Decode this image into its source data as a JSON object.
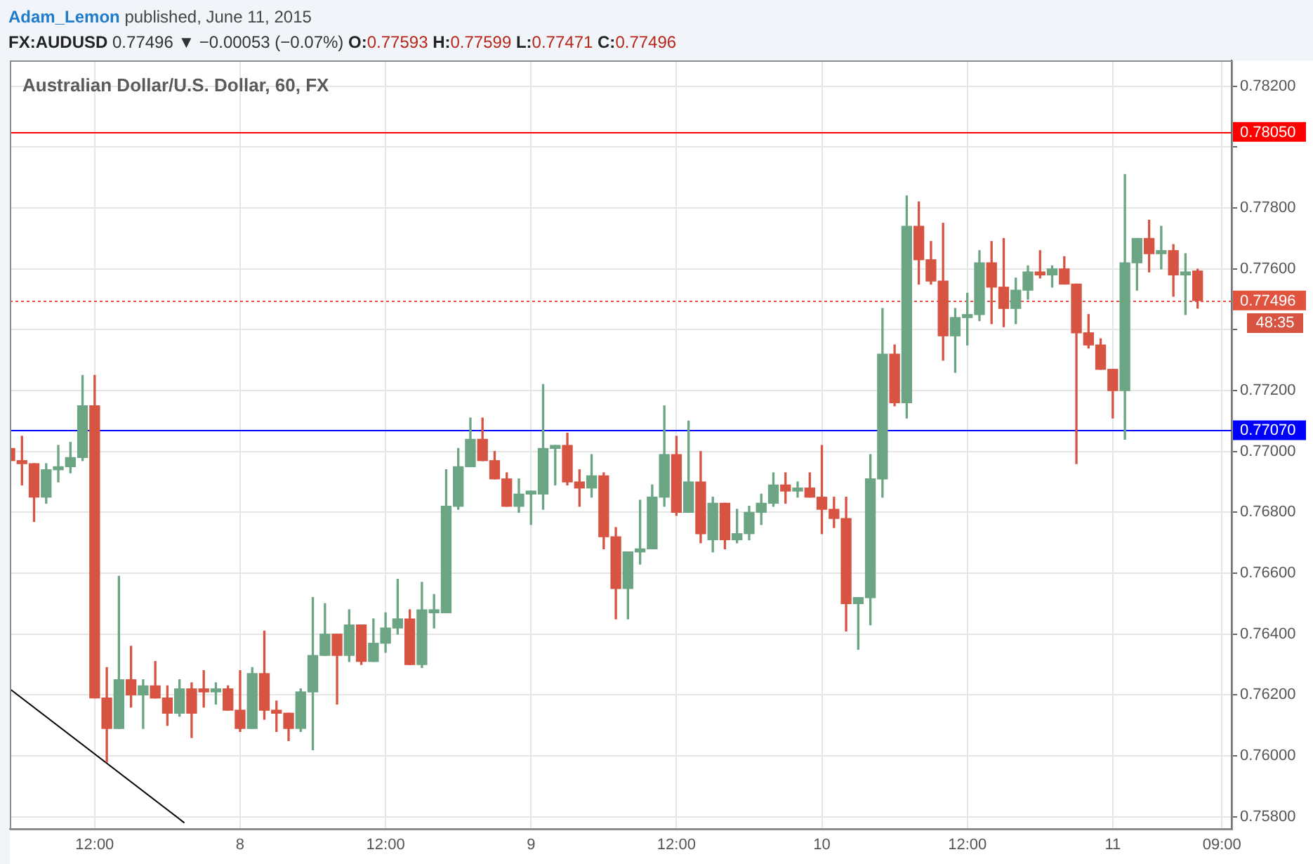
{
  "chart_data": {
    "type": "candlestick",
    "title": "Australian Dollar/U.S. Dollar, 60, FX",
    "annotations": [
      "Adam_Lemon published, June 11, 2015",
      "FX:AUDUSD 0.77496 ▼ −0.00053 (−0.07%) O:0.77593 H:0.77599 L:0.77471 C:0.77496",
      "48:35"
    ],
    "x": [
      "2015-06-07T05:00",
      "2015-06-07T06:00",
      "2015-06-07T07:00",
      "2015-06-07T08:00",
      "2015-06-07T09:00",
      "2015-06-07T10:00",
      "2015-06-07T11:00",
      "2015-06-07T12:00",
      "2015-06-07T13:00",
      "2015-06-07T14:00",
      "2015-06-07T15:00",
      "2015-06-07T16:00",
      "2015-06-07T17:00",
      "2015-06-07T18:00",
      "2015-06-07T19:00",
      "2015-06-07T20:00",
      "2015-06-07T21:00",
      "2015-06-07T22:00",
      "2015-06-07T23:00",
      "2015-06-08T00:00",
      "2015-06-08T01:00",
      "2015-06-08T02:00",
      "2015-06-08T03:00",
      "2015-06-08T04:00",
      "2015-06-08T05:00",
      "2015-06-08T06:00",
      "2015-06-08T07:00",
      "2015-06-08T08:00",
      "2015-06-08T09:00",
      "2015-06-08T10:00",
      "2015-06-08T11:00",
      "2015-06-08T12:00",
      "2015-06-08T13:00",
      "2015-06-08T14:00",
      "2015-06-08T15:00",
      "2015-06-08T16:00",
      "2015-06-08T17:00",
      "2015-06-08T18:00",
      "2015-06-08T19:00",
      "2015-06-08T20:00",
      "2015-06-08T21:00",
      "2015-06-08T22:00",
      "2015-06-08T23:00",
      "2015-06-09T00:00",
      "2015-06-09T01:00",
      "2015-06-09T02:00",
      "2015-06-09T03:00",
      "2015-06-09T04:00",
      "2015-06-09T05:00",
      "2015-06-09T06:00",
      "2015-06-09T07:00",
      "2015-06-09T08:00",
      "2015-06-09T09:00",
      "2015-06-09T10:00",
      "2015-06-09T11:00",
      "2015-06-09T12:00",
      "2015-06-09T13:00",
      "2015-06-09T14:00",
      "2015-06-09T15:00",
      "2015-06-09T16:00",
      "2015-06-09T17:00",
      "2015-06-09T18:00",
      "2015-06-09T19:00",
      "2015-06-09T20:00",
      "2015-06-09T21:00",
      "2015-06-09T22:00",
      "2015-06-09T23:00",
      "2015-06-10T00:00",
      "2015-06-10T01:00",
      "2015-06-10T02:00",
      "2015-06-10T03:00",
      "2015-06-10T04:00",
      "2015-06-10T05:00",
      "2015-06-10T06:00",
      "2015-06-10T07:00",
      "2015-06-10T08:00",
      "2015-06-10T09:00",
      "2015-06-10T10:00",
      "2015-06-10T11:00",
      "2015-06-10T12:00",
      "2015-06-10T13:00",
      "2015-06-10T14:00",
      "2015-06-10T15:00",
      "2015-06-10T16:00",
      "2015-06-10T17:00",
      "2015-06-10T18:00",
      "2015-06-10T19:00",
      "2015-06-10T20:00",
      "2015-06-10T21:00",
      "2015-06-10T22:00",
      "2015-06-10T23:00",
      "2015-06-11T00:00",
      "2015-06-11T01:00",
      "2015-06-11T02:00",
      "2015-06-11T03:00",
      "2015-06-11T04:00",
      "2015-06-11T05:00",
      "2015-06-11T06:00",
      "2015-06-11T07:00"
    ],
    "ohlc": [
      [
        0.7701,
        0.7701,
        0.7697,
        0.7697
      ],
      [
        0.7697,
        0.7705,
        0.7689,
        0.7696
      ],
      [
        0.7696,
        0.7696,
        0.7677,
        0.7685
      ],
      [
        0.7685,
        0.7696,
        0.7683,
        0.7694
      ],
      [
        0.7694,
        0.7702,
        0.769,
        0.7695
      ],
      [
        0.7695,
        0.7703,
        0.7693,
        0.7698
      ],
      [
        0.7698,
        0.7725,
        0.7697,
        0.7715
      ],
      [
        0.7715,
        0.7725,
        0.7619,
        0.7619
      ],
      [
        0.7619,
        0.7629,
        0.7598,
        0.7609
      ],
      [
        0.7609,
        0.7659,
        0.7609,
        0.7625
      ],
      [
        0.7625,
        0.7636,
        0.7616,
        0.762
      ],
      [
        0.762,
        0.7625,
        0.7609,
        0.7623
      ],
      [
        0.7623,
        0.7631,
        0.7619,
        0.7619
      ],
      [
        0.7619,
        0.7623,
        0.761,
        0.7614
      ],
      [
        0.7614,
        0.7625,
        0.7613,
        0.7622
      ],
      [
        0.7622,
        0.7624,
        0.7606,
        0.7614
      ],
      [
        0.7622,
        0.7628,
        0.7616,
        0.7621
      ],
      [
        0.7621,
        0.7624,
        0.7617,
        0.7622
      ],
      [
        0.7622,
        0.7623,
        0.7615,
        0.7615
      ],
      [
        0.7615,
        0.7628,
        0.7608,
        0.7609
      ],
      [
        0.7609,
        0.7629,
        0.7609,
        0.7627
      ],
      [
        0.7627,
        0.7641,
        0.7612,
        0.7615
      ],
      [
        0.7615,
        0.7618,
        0.7608,
        0.7614
      ],
      [
        0.7614,
        0.7614,
        0.7605,
        0.7609
      ],
      [
        0.7609,
        0.7622,
        0.7608,
        0.7621
      ],
      [
        0.7621,
        0.7652,
        0.7602,
        0.7633
      ],
      [
        0.7633,
        0.765,
        0.7633,
        0.764
      ],
      [
        0.764,
        0.764,
        0.7617,
        0.7633
      ],
      [
        0.7633,
        0.7648,
        0.7631,
        0.7643
      ],
      [
        0.7643,
        0.7643,
        0.763,
        0.7631
      ],
      [
        0.7631,
        0.7645,
        0.7631,
        0.7637
      ],
      [
        0.7637,
        0.7647,
        0.7634,
        0.7642
      ],
      [
        0.7642,
        0.7658,
        0.764,
        0.7645
      ],
      [
        0.7645,
        0.7648,
        0.763,
        0.763
      ],
      [
        0.763,
        0.7657,
        0.7629,
        0.7648
      ],
      [
        0.7647,
        0.7653,
        0.7642,
        0.7648
      ],
      [
        0.7647,
        0.7694,
        0.7647,
        0.7682
      ],
      [
        0.7682,
        0.7701,
        0.7681,
        0.7695
      ],
      [
        0.7695,
        0.7711,
        0.7695,
        0.7704
      ],
      [
        0.7704,
        0.7711,
        0.7697,
        0.7697
      ],
      [
        0.7697,
        0.77,
        0.7691,
        0.7691
      ],
      [
        0.7691,
        0.7693,
        0.7682,
        0.7682
      ],
      [
        0.7682,
        0.7691,
        0.768,
        0.7686
      ],
      [
        0.7686,
        0.7687,
        0.7676,
        0.7687
      ],
      [
        0.7686,
        0.7722,
        0.7681,
        0.7701
      ],
      [
        0.7701,
        0.7702,
        0.7689,
        0.7702
      ],
      [
        0.7702,
        0.7706,
        0.7689,
        0.769
      ],
      [
        0.769,
        0.7694,
        0.7682,
        0.7688
      ],
      [
        0.7688,
        0.7699,
        0.7685,
        0.7692
      ],
      [
        0.7692,
        0.7693,
        0.7668,
        0.7672
      ],
      [
        0.7672,
        0.7675,
        0.7645,
        0.7655
      ],
      [
        0.7655,
        0.7667,
        0.7645,
        0.7667
      ],
      [
        0.7667,
        0.7684,
        0.7663,
        0.7668
      ],
      [
        0.7668,
        0.7689,
        0.7668,
        0.7685
      ],
      [
        0.7685,
        0.7715,
        0.7682,
        0.7699
      ],
      [
        0.7699,
        0.7705,
        0.7679,
        0.768
      ],
      [
        0.768,
        0.771,
        0.768,
        0.769
      ],
      [
        0.769,
        0.77,
        0.767,
        0.7673
      ],
      [
        0.7671,
        0.7685,
        0.7667,
        0.7683
      ],
      [
        0.7683,
        0.7683,
        0.7668,
        0.7671
      ],
      [
        0.7671,
        0.7681,
        0.767,
        0.7673
      ],
      [
        0.7673,
        0.7682,
        0.7671,
        0.768
      ],
      [
        0.768,
        0.7686,
        0.7676,
        0.7683
      ],
      [
        0.7683,
        0.7693,
        0.7682,
        0.7689
      ],
      [
        0.7689,
        0.7693,
        0.7683,
        0.7687
      ],
      [
        0.7687,
        0.769,
        0.7685,
        0.7688
      ],
      [
        0.7688,
        0.7693,
        0.7685,
        0.7685
      ],
      [
        0.7685,
        0.7702,
        0.7673,
        0.7681
      ],
      [
        0.7681,
        0.7685,
        0.7675,
        0.7678
      ],
      [
        0.7678,
        0.7685,
        0.7641,
        0.765
      ],
      [
        0.765,
        0.7652,
        0.7635,
        0.7652
      ],
      [
        0.7652,
        0.7699,
        0.7643,
        0.7691
      ],
      [
        0.7691,
        0.7747,
        0.7685,
        0.7732
      ],
      [
        0.7732,
        0.7735,
        0.7715,
        0.7716
      ],
      [
        0.7716,
        0.7784,
        0.7711,
        0.7774
      ],
      [
        0.7774,
        0.7782,
        0.7755,
        0.7763
      ],
      [
        0.7763,
        0.7769,
        0.7755,
        0.7756
      ],
      [
        0.7756,
        0.7775,
        0.773,
        0.7738
      ],
      [
        0.7738,
        0.7747,
        0.7726,
        0.7744
      ],
      [
        0.7744,
        0.7752,
        0.7735,
        0.7745
      ],
      [
        0.7745,
        0.7766,
        0.7743,
        0.7762
      ],
      [
        0.7762,
        0.7769,
        0.7742,
        0.7754
      ],
      [
        0.7754,
        0.777,
        0.7741,
        0.7747
      ],
      [
        0.7747,
        0.7757,
        0.7742,
        0.7753
      ],
      [
        0.7753,
        0.7761,
        0.775,
        0.7759
      ],
      [
        0.7759,
        0.7766,
        0.7757,
        0.7758
      ],
      [
        0.7758,
        0.7761,
        0.7754,
        0.776
      ],
      [
        0.776,
        0.7764,
        0.7755,
        0.7755
      ],
      [
        0.7755,
        0.7755,
        0.7696,
        0.7739
      ],
      [
        0.7739,
        0.7745,
        0.7734,
        0.7735
      ],
      [
        0.7735,
        0.7737,
        0.7727,
        0.7727
      ],
      [
        0.7727,
        0.7727,
        0.7711,
        0.772
      ],
      [
        0.772,
        0.7791,
        0.7704,
        0.7762
      ],
      [
        0.7762,
        0.777,
        0.7753,
        0.777
      ],
      [
        0.777,
        0.7776,
        0.7759,
        0.7765
      ],
      [
        0.7765,
        0.7774,
        0.776,
        0.7766
      ],
      [
        0.7766,
        0.7768,
        0.7751,
        0.7758
      ],
      [
        0.7758,
        0.7765,
        0.7745,
        0.7759
      ],
      [
        0.77593,
        0.77599,
        0.77471,
        0.77496
      ]
    ],
    "colors": [
      "#d75442",
      "#d75442",
      "#d75442",
      "#6ba583",
      "#6ba583",
      "#6ba583",
      "#6ba583",
      "#d75442",
      "#d75442",
      "#6ba583",
      "#d75442",
      "#6ba583",
      "#d75442",
      "#d75442",
      "#6ba583",
      "#d75442",
      "#d75442",
      "#6ba583",
      "#d75442",
      "#d75442",
      "#6ba583",
      "#d75442",
      "#d75442",
      "#d75442",
      "#6ba583",
      "#6ba583",
      "#6ba583",
      "#d75442",
      "#6ba583",
      "#d75442",
      "#6ba583",
      "#6ba583",
      "#6ba583",
      "#d75442",
      "#6ba583",
      "#6ba583",
      "#6ba583",
      "#6ba583",
      "#6ba583",
      "#d75442",
      "#d75442",
      "#d75442",
      "#6ba583",
      "#6ba583",
      "#6ba583",
      "#6ba583",
      "#d75442",
      "#d75442",
      "#6ba583",
      "#d75442",
      "#d75442",
      "#6ba583",
      "#6ba583",
      "#6ba583",
      "#6ba583",
      "#d75442",
      "#6ba583",
      "#d75442",
      "#6ba583",
      "#d75442",
      "#6ba583",
      "#6ba583",
      "#6ba583",
      "#6ba583",
      "#d75442",
      "#6ba583",
      "#d75442",
      "#d75442",
      "#d75442",
      "#d75442",
      "#6ba583",
      "#6ba583",
      "#6ba583",
      "#d75442",
      "#6ba583",
      "#d75442",
      "#d75442",
      "#d75442",
      "#6ba583",
      "#6ba583",
      "#6ba583",
      "#d75442",
      "#d75442",
      "#6ba583",
      "#6ba583",
      "#d75442",
      "#6ba583",
      "#d75442",
      "#d75442",
      "#d75442",
      "#d75442",
      "#d75442",
      "#6ba583",
      "#6ba583",
      "#d75442",
      "#6ba583",
      "#d75442",
      "#6ba583",
      "#d75442"
    ],
    "series": [
      {
        "type": "line",
        "x": [
          "2015-06-07T05:00",
          "2015-06-07T19:24"
        ],
        "values": [
          0.7622,
          0.7578
        ],
        "color": "#000000"
      }
    ],
    "ref_lines": [
      {
        "axis": "y",
        "value": 0.7805,
        "label": "0.78050",
        "color": "#ff0000"
      },
      {
        "axis": "y",
        "value": 0.7707,
        "label": "0.77070",
        "color": "#0000ff"
      },
      {
        "axis": "y",
        "value": 0.77496,
        "label": "0.77496",
        "color": "#e0533f",
        "line_style": "dotted"
      }
    ],
    "xlim": [
      "2015-06-07T05:00",
      "2015-06-11T09:48"
    ],
    "xticks": [
      {
        "value": "2015-06-07T12:00",
        "label": "12:00"
      },
      {
        "value": "2015-06-08T00:00",
        "label": "8"
      },
      {
        "value": "2015-06-08T12:00",
        "label": "12:00"
      },
      {
        "value": "2015-06-09T00:00",
        "label": "9"
      },
      {
        "value": "2015-06-09T12:00",
        "label": "12:00"
      },
      {
        "value": "2015-06-10T00:00",
        "label": "10"
      },
      {
        "value": "2015-06-10T12:00",
        "label": "12:00"
      },
      {
        "value": "2015-06-11T00:00",
        "label": "11"
      },
      {
        "value": "2015-06-11T09:00",
        "label": "09:00"
      }
    ],
    "ylim": [
      0.7576,
      0.78285
    ],
    "yticks": [
      {
        "value": 0.758,
        "label": "0.75800"
      },
      {
        "value": 0.76,
        "label": "0.76000"
      },
      {
        "value": 0.762,
        "label": "0.76200"
      },
      {
        "value": 0.764,
        "label": "0.76400"
      },
      {
        "value": 0.766,
        "label": "0.76600"
      },
      {
        "value": 0.768,
        "label": "0.76800"
      },
      {
        "value": 0.77,
        "label": "0.77000"
      },
      {
        "value": 0.772,
        "label": "0.77200"
      },
      {
        "value": 0.774,
        "label": null
      },
      {
        "value": 0.776,
        "label": "0.77600"
      },
      {
        "value": 0.778,
        "label": "0.77800"
      },
      {
        "value": 0.78,
        "label": null
      },
      {
        "value": 0.782,
        "label": "0.78200"
      }
    ],
    "grid": true
  }
}
